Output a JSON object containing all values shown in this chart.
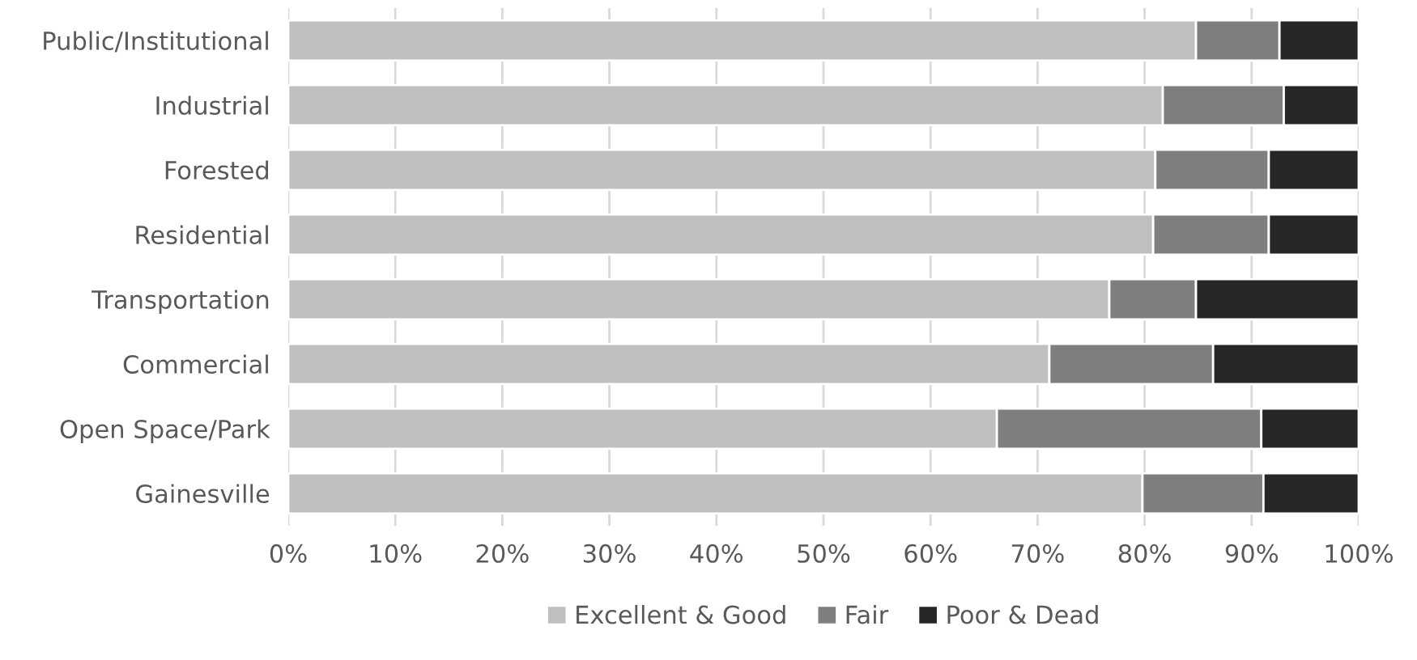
{
  "chart_data": {
    "type": "bar",
    "orientation": "horizontal",
    "stacked": true,
    "categories": [
      "Public/Institutional",
      "Industrial",
      "Forested",
      "Residential",
      "Transportation",
      "Commercial",
      "Open Space/Park",
      "Gainesville"
    ],
    "series": [
      {
        "name": "Excellent & Good",
        "color": "#bfbfbf",
        "values": [
          84.8,
          81.7,
          81.0,
          80.8,
          76.7,
          71.1,
          66.2,
          79.8
        ]
      },
      {
        "name": "Fair",
        "color": "#7f7f7f",
        "values": [
          7.8,
          11.3,
          10.6,
          10.8,
          8.1,
          15.3,
          24.7,
          11.3
        ]
      },
      {
        "name": "Poor & Dead",
        "color": "#262626",
        "values": [
          7.4,
          7.0,
          8.4,
          8.4,
          15.2,
          13.6,
          9.1,
          8.9
        ]
      }
    ],
    "xlim": [
      0,
      100
    ],
    "xticks": [
      {
        "value": 0,
        "label": "0%"
      },
      {
        "value": 10,
        "label": "10%"
      },
      {
        "value": 20,
        "label": "20%"
      },
      {
        "value": 30,
        "label": "30%"
      },
      {
        "value": 40,
        "label": "40%"
      },
      {
        "value": 50,
        "label": "50%"
      },
      {
        "value": 60,
        "label": "60%"
      },
      {
        "value": 70,
        "label": "70%"
      },
      {
        "value": 80,
        "label": "80%"
      },
      {
        "value": 90,
        "label": "90%"
      },
      {
        "value": 100,
        "label": "100%"
      }
    ],
    "grid": "x",
    "legend": "bottom"
  }
}
